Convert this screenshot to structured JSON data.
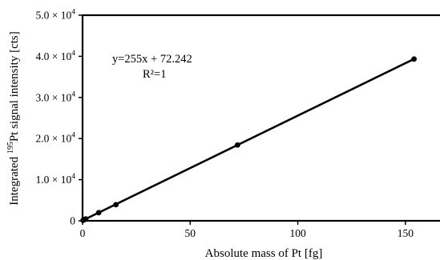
{
  "chart_data": {
    "type": "scatter",
    "title": "",
    "xlabel": "Absolute mass of Pt [fg]",
    "ylabel": {
      "prefix": "Integrated ",
      "superscript": "195",
      "suffix": "Pt  signal intensity  [cts]"
    },
    "xlim": [
      0,
      175
    ],
    "ylim": [
      0,
      50000
    ],
    "x_ticks": [
      {
        "value": 0,
        "label": "0"
      },
      {
        "value": 50,
        "label": "50"
      },
      {
        "value": 100,
        "label": "100"
      },
      {
        "value": 150,
        "label": "150"
      }
    ],
    "y_ticks": [
      {
        "value": 0,
        "label_base": "0",
        "label_exp": ""
      },
      {
        "value": 10000,
        "label_base": "1.0 × 10",
        "label_exp": "4"
      },
      {
        "value": 20000,
        "label_base": "2.0 × 10",
        "label_exp": "4"
      },
      {
        "value": 30000,
        "label_base": "3.0 × 10",
        "label_exp": "4"
      },
      {
        "value": 40000,
        "label_base": "4.0 × 10",
        "label_exp": "4"
      },
      {
        "value": 50000,
        "label_base": "5.0 × 10",
        "label_exp": "4"
      }
    ],
    "series": [
      {
        "x": [
          0.2,
          0.5,
          1,
          1.5,
          7.5,
          15.5,
          72,
          154
        ],
        "y": [
          120,
          200,
          330,
          450,
          1980,
          3920,
          18440,
          39340
        ],
        "trendline": {
          "slope": 255,
          "intercept": 72.242,
          "x_range": [
            0,
            154
          ]
        }
      }
    ],
    "annotations": {
      "equation": "y=255x + 72.242",
      "r2": "R²=1"
    },
    "grid": false,
    "legend": "none"
  }
}
